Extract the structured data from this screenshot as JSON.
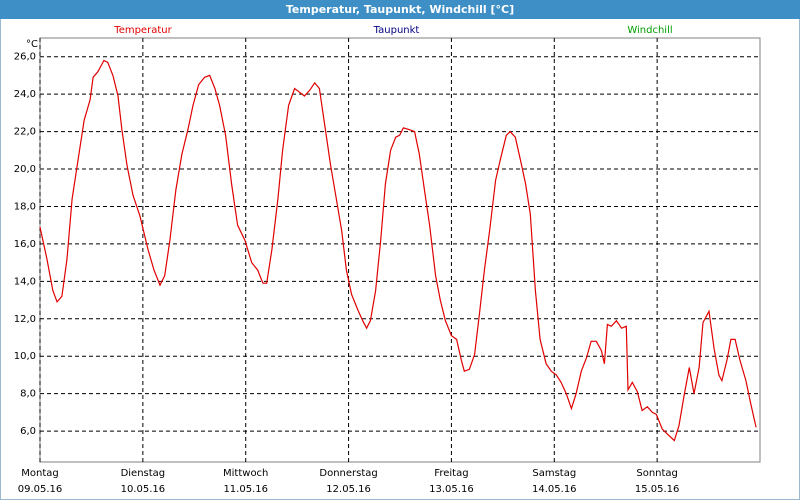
{
  "window_title": "Temperatur, Taupunkt, Windchill [°C]",
  "chart_data": {
    "type": "line",
    "y_unit": "°C",
    "x": [
      0,
      1.6,
      3.0,
      4.0,
      5.1,
      6.3,
      7.5,
      8.9,
      10.3,
      11.7,
      12.4,
      13.5,
      14.9,
      15.8,
      17.0,
      18.2,
      19.1,
      20.3,
      21.7,
      23.3,
      25.2,
      26.6,
      28.0,
      29.1,
      30.3,
      31.7,
      33.1,
      34.5,
      35.7,
      37.0,
      38.4,
      39.6,
      40.8,
      41.9,
      43.3,
      44.7,
      46.1,
      47.8,
      49.4,
      50.8,
      52.0,
      52.9,
      54.1,
      55.5,
      56.6,
      58.0,
      59.4,
      60.6,
      61.7,
      62.9,
      64.1,
      65.2,
      66.6,
      67.8,
      69.0,
      70.4,
      71.5,
      72.7,
      74.1,
      75.3,
      76.2,
      77.1,
      78.3,
      79.5,
      80.6,
      81.8,
      83.0,
      83.9,
      84.8,
      86.2,
      87.4,
      88.5,
      89.7,
      90.9,
      92.3,
      93.4,
      94.6,
      96.0,
      97.2,
      98.3,
      99.0,
      100.2,
      101.4,
      102.5,
      103.7,
      104.9,
      106.3,
      107.4,
      108.8,
      109.7,
      110.9,
      112.1,
      113.3,
      114.4,
      115.6,
      116.7,
      118.1,
      119.3,
      120.5,
      121.6,
      122.8,
      124.0,
      125.1,
      126.3,
      127.5,
      128.6,
      129.8,
      131.0,
      131.7,
      132.4,
      133.3,
      134.5,
      135.7,
      136.8,
      137.2,
      138.2,
      139.4,
      140.5,
      141.7,
      142.9,
      143.8,
      145.2,
      146.6,
      148.0,
      149.1,
      150.3,
      151.5,
      152.6,
      153.8,
      154.7,
      156.1,
      157.3,
      158.4,
      159.1,
      160.3,
      161.2,
      162.2,
      163.3,
      164.7,
      165.9,
      167.1
    ],
    "series": [
      {
        "name": "Temperatur",
        "color": "#e00000",
        "values": [
          16.9,
          15.2,
          13.5,
          12.9,
          13.2,
          15.2,
          18.4,
          20.5,
          22.6,
          23.7,
          24.9,
          25.2,
          25.8,
          25.7,
          25.0,
          23.9,
          22.1,
          20.2,
          18.6,
          17.5,
          15.7,
          14.6,
          13.8,
          14.3,
          16.2,
          18.9,
          20.8,
          22.1,
          23.4,
          24.5,
          24.9,
          25.0,
          24.3,
          23.4,
          21.8,
          19.2,
          17.0,
          16.2,
          15.0,
          14.6,
          13.9,
          13.9,
          15.7,
          18.4,
          21.0,
          23.4,
          24.3,
          24.1,
          23.9,
          24.2,
          24.6,
          24.3,
          22.1,
          20.2,
          18.6,
          16.7,
          14.6,
          13.3,
          12.5,
          11.9,
          11.5,
          11.9,
          13.5,
          16.2,
          19.2,
          21.0,
          21.7,
          21.8,
          22.2,
          22.1,
          22.0,
          20.8,
          18.9,
          17.0,
          14.3,
          13.0,
          11.9,
          11.1,
          10.9,
          9.8,
          9.2,
          9.3,
          10.1,
          12.2,
          14.6,
          16.7,
          19.4,
          20.5,
          21.8,
          22.0,
          21.7,
          20.5,
          19.2,
          17.6,
          13.5,
          10.9,
          9.6,
          9.2,
          9.0,
          8.6,
          8.0,
          7.2,
          8.0,
          9.2,
          9.9,
          10.8,
          10.8,
          10.3,
          9.6,
          11.7,
          11.6,
          11.9,
          11.5,
          11.6,
          8.2,
          8.6,
          8.1,
          7.1,
          7.3,
          7.0,
          6.9,
          6.1,
          5.8,
          5.5,
          6.3,
          7.9,
          9.4,
          8.0,
          9.4,
          11.8,
          12.4,
          10.4,
          9.0,
          8.7,
          9.8,
          10.9,
          10.9,
          9.8,
          8.7,
          7.4,
          6.2
        ]
      },
      {
        "name": "Taupunkt",
        "color": "#000080"
      },
      {
        "name": "Windchill",
        "color": "#00a000"
      }
    ],
    "xlim": [
      0,
      168
    ],
    "xticks": [
      {
        "value": 0,
        "label": "Montag",
        "date": "09.05.16"
      },
      {
        "value": 24,
        "label": "Dienstag",
        "date": "10.05.16"
      },
      {
        "value": 48,
        "label": "Mittwoch",
        "date": "11.05.16"
      },
      {
        "value": 72,
        "label": "Donnerstag",
        "date": "12.05.16"
      },
      {
        "value": 96,
        "label": "Freitag",
        "date": "13.05.16"
      },
      {
        "value": 120,
        "label": "Samstag",
        "date": "14.05.16"
      },
      {
        "value": 144,
        "label": "Sonntag",
        "date": "15.05.16"
      }
    ],
    "ylim": [
      4.35,
      27.0
    ],
    "yticks": [
      {
        "value": 6,
        "label": "6,0"
      },
      {
        "value": 8,
        "label": "8,0"
      },
      {
        "value": 10,
        "label": "10,0"
      },
      {
        "value": 12,
        "label": "12,0"
      },
      {
        "value": 14,
        "label": "14,0"
      },
      {
        "value": 16,
        "label": "16,0"
      },
      {
        "value": 18,
        "label": "18,0"
      },
      {
        "value": 20,
        "label": "20,0"
      },
      {
        "value": 22,
        "label": "22,0"
      },
      {
        "value": 24,
        "label": "24,0"
      },
      {
        "value": 26,
        "label": "26,0"
      }
    ],
    "grid": true
  }
}
